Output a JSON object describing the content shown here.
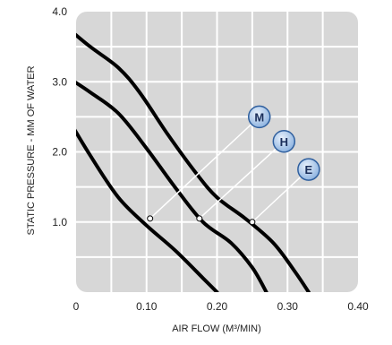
{
  "chart_data": {
    "type": "line",
    "xlabel": "AIR FLOW (M³/MIN)",
    "ylabel": "STATIC PRESSURE - MM OF WATER",
    "xlim": [
      0,
      0.4
    ],
    "ylim": [
      0,
      4.0
    ],
    "x_ticks": [
      "0",
      "0.10",
      "0.20",
      "0.30",
      "0.40"
    ],
    "y_ticks": [
      "1.0",
      "2.0",
      "3.0",
      "4.0"
    ],
    "grid": true,
    "series": [
      {
        "name": "M",
        "x": [
          -0.01,
          0.02,
          0.06,
          0.1,
          0.14,
          0.18,
          0.2
        ],
        "y": [
          2.45,
          1.95,
          1.35,
          0.95,
          0.6,
          0.2,
          0.0
        ]
      },
      {
        "name": "H",
        "x": [
          -0.01,
          0.02,
          0.06,
          0.1,
          0.14,
          0.18,
          0.22,
          0.25,
          0.27
        ],
        "y": [
          3.05,
          2.85,
          2.55,
          2.05,
          1.5,
          1.0,
          0.7,
          0.35,
          0.0
        ]
      },
      {
        "name": "E",
        "x": [
          -0.01,
          0.02,
          0.06,
          0.09,
          0.13,
          0.17,
          0.2,
          0.24,
          0.28,
          0.31,
          0.33
        ],
        "y": [
          3.75,
          3.5,
          3.2,
          2.85,
          2.25,
          1.7,
          1.35,
          1.05,
          0.7,
          0.3,
          0.0
        ]
      }
    ],
    "annotations": [
      {
        "label": "M",
        "point": [
          0.105,
          1.05
        ],
        "badge": [
          0.26,
          2.5
        ]
      },
      {
        "label": "H",
        "point": [
          0.175,
          1.05
        ],
        "badge": [
          0.295,
          2.15
        ]
      },
      {
        "label": "E",
        "point": [
          0.25,
          1.0
        ],
        "badge": [
          0.33,
          1.75
        ]
      }
    ],
    "colors": {
      "plot_background": "#d7d7d7",
      "grid": "#ffffff",
      "curve": "#000000",
      "badge_fill": "#8fb4e0",
      "badge_stroke": "#2f5f9e",
      "badge_text": "#1a2e5a"
    }
  }
}
